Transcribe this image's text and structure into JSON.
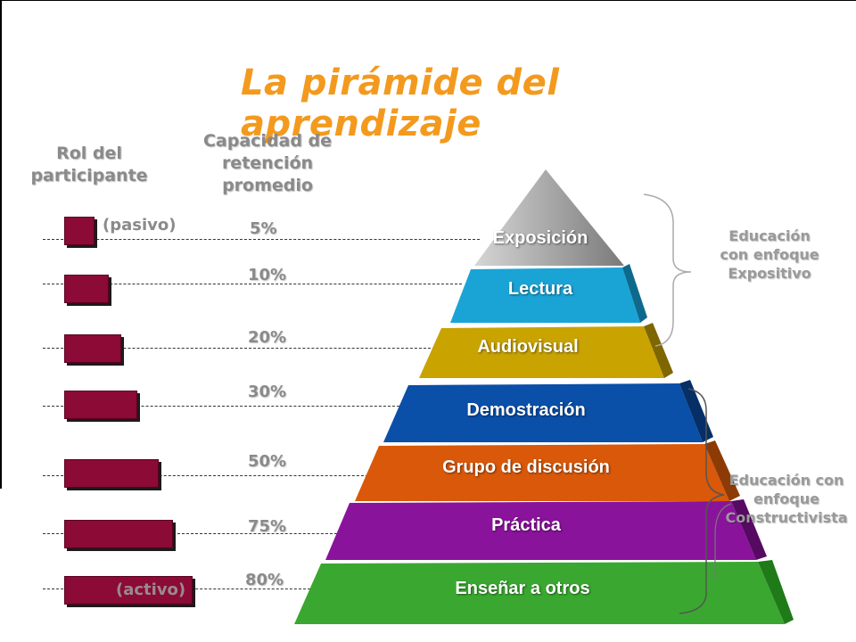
{
  "title": "La pirámide del aprendizaje",
  "headers": {
    "role": [
      "Rol del",
      "participante"
    ],
    "retention": [
      "Capacidad de",
      "retención",
      "promedio"
    ]
  },
  "role_words": {
    "passive": "(pasivo)",
    "active": "(activo)"
  },
  "colors": {
    "title": "#F39A1E",
    "bar": "#8B0A36",
    "header_text": "#8A8A8A",
    "layers": [
      "#9E9E9E",
      "#1AA4D6",
      "#C9A300",
      "#0A4FA8",
      "#D9580A",
      "#8A139B",
      "#3AA830"
    ]
  },
  "rows": [
    {
      "percent": "5%",
      "layer": "Exposición"
    },
    {
      "percent": "10%",
      "layer": "Lectura"
    },
    {
      "percent": "20%",
      "layer": "Audiovisual"
    },
    {
      "percent": "30%",
      "layer": "Demostración"
    },
    {
      "percent": "50%",
      "layer": "Grupo de discusión"
    },
    {
      "percent": "75%",
      "layer": "Práctica"
    },
    {
      "percent": "80%",
      "layer": "Enseñar a otros"
    }
  ],
  "groups": {
    "expositivo": [
      "Educación",
      "con enfoque",
      "Expositivo"
    ],
    "constructivista": [
      "Educación con",
      "enfoque",
      "Constructivista"
    ]
  }
}
